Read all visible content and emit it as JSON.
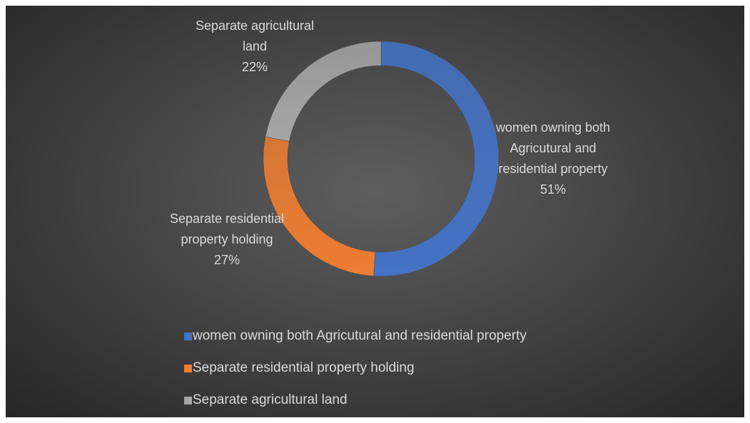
{
  "chart_data": {
    "type": "donut",
    "categories": [
      "women owning both Agricutural and residential property",
      "Separate residential property holding",
      "Separate agricultural land"
    ],
    "values": [
      51,
      27,
      22
    ],
    "value_labels": [
      "51%",
      "27%",
      "22%"
    ],
    "colors": [
      "#4472c4",
      "#ed7d31",
      "#a5a5a5"
    ],
    "legend": "bottom"
  }
}
